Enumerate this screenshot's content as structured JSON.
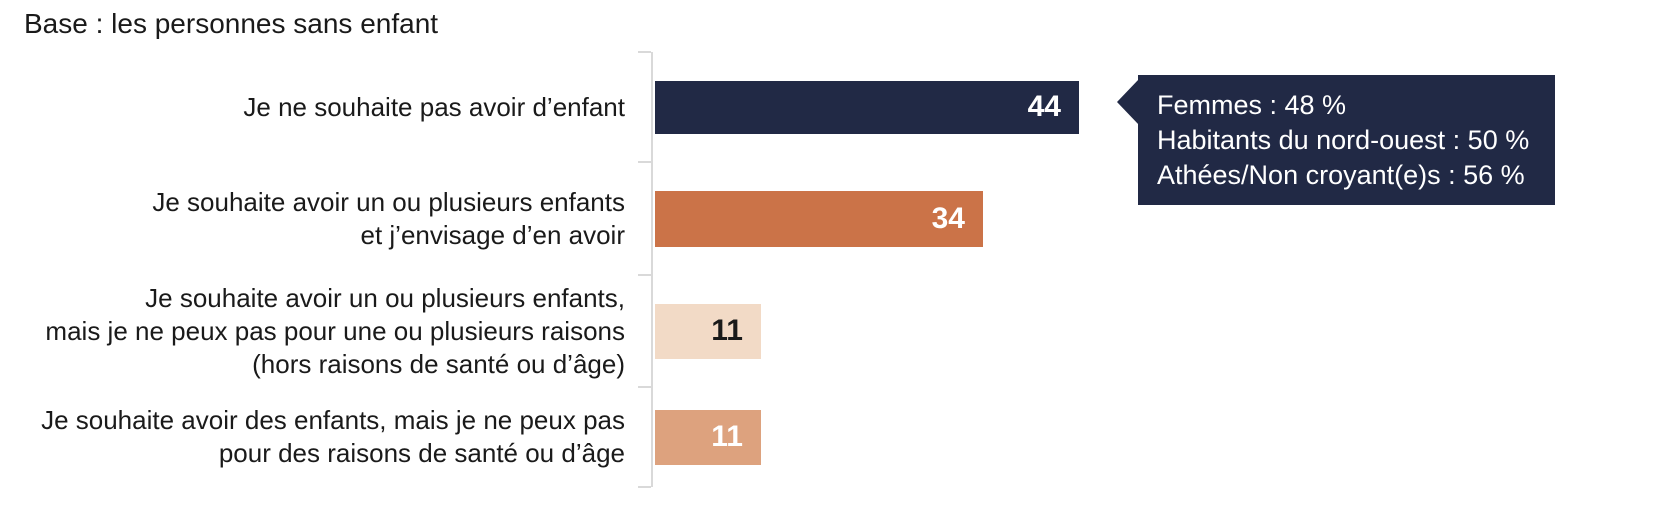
{
  "title": "Base : les personnes sans enfant",
  "chart_data": {
    "type": "bar",
    "orientation": "horizontal",
    "title": "Base : les personnes sans enfant",
    "unit": "%",
    "xlabel": "",
    "ylabel": "",
    "xlim": [
      0,
      100
    ],
    "grid": false,
    "legend": "none",
    "categories": [
      [
        "Je ne souhaite pas avoir d’enfant"
      ],
      [
        "Je souhaite avoir un ou plusieurs enfants",
        "et j’envisage d’en avoir"
      ],
      [
        "Je souhaite avoir un ou plusieurs enfants,",
        "mais je ne peux pas pour une ou plusieurs raisons",
        "(hors raisons de santé ou d’âge)"
      ],
      [
        "Je souhaite avoir des enfants, mais je ne peux pas",
        "pour des raisons de santé ou d’âge"
      ]
    ],
    "values": [
      44,
      34,
      11,
      11
    ],
    "bar_colors": [
      "#212945",
      "#cb7348",
      "#f2dac6",
      "#dda27e"
    ],
    "value_text_colors": [
      "#ffffff",
      "#ffffff",
      "#1a1a1a",
      "#ffffff"
    ],
    "axis_color": "#d9d9d9",
    "text_color": "#1a1a1a"
  },
  "annotation": {
    "attached_to_value": 44,
    "lines": [
      "Femmes : 48 %",
      "Habitants du nord-ouest : 50 %",
      "Athées/Non croyant(e)s : 56 %"
    ],
    "background": "#212945",
    "text_color": "#ffffff"
  }
}
